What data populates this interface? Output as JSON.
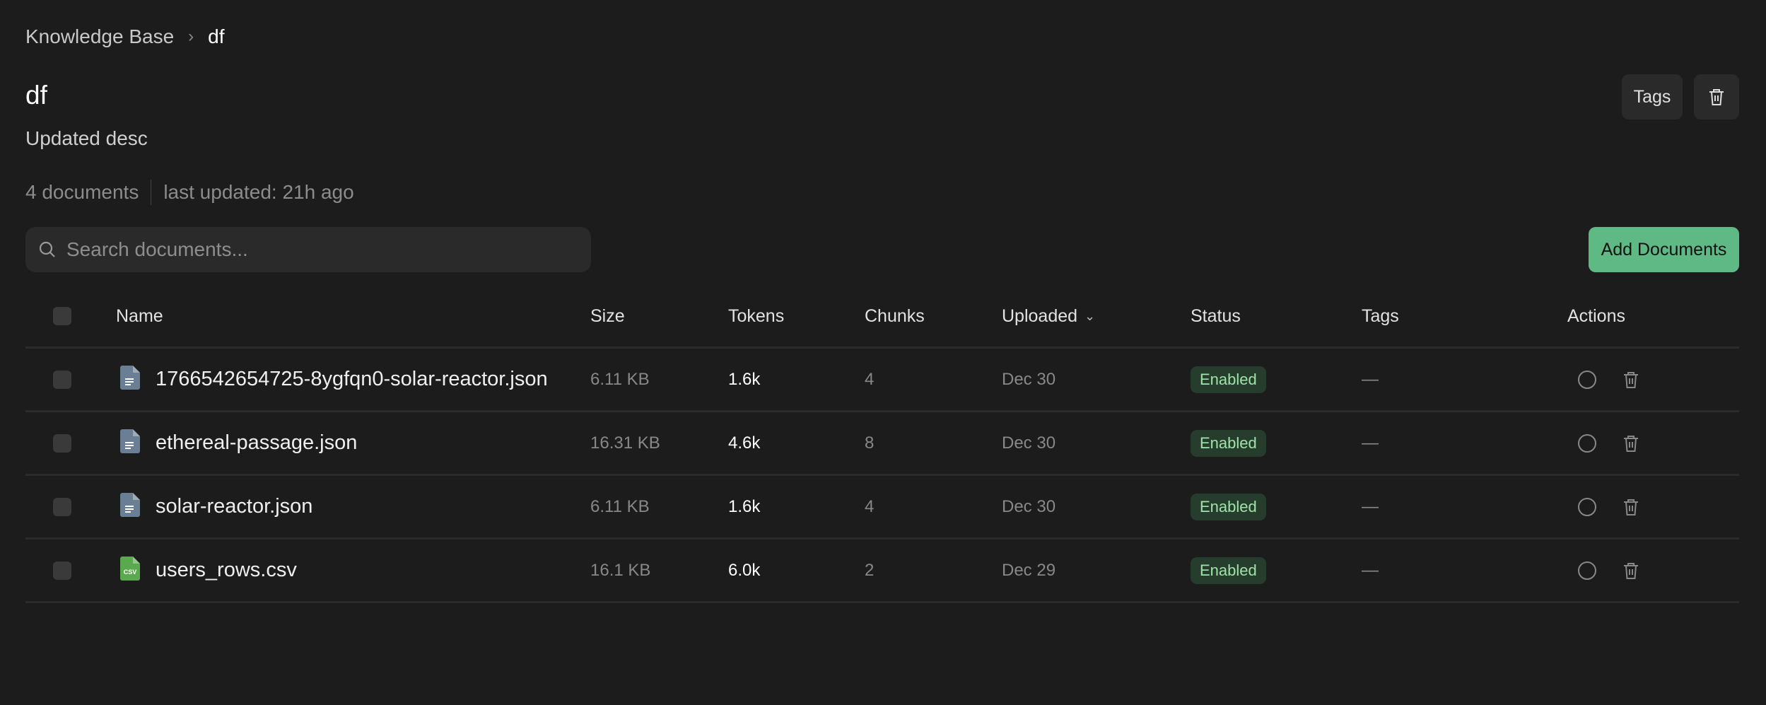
{
  "breadcrumb": {
    "root": "Knowledge Base",
    "current": "df"
  },
  "header": {
    "title": "df",
    "description": "Updated desc",
    "doc_count": "4 documents",
    "last_updated": "last updated: 21h ago",
    "tags_button": "Tags"
  },
  "search": {
    "placeholder": "Search documents...",
    "value": ""
  },
  "add_button": "Add Documents",
  "colors": {
    "accent": "#5fb985",
    "badge_bg": "#263d2d",
    "badge_text": "#9ee3a8",
    "json_icon": "#6a7f93",
    "csv_icon": "#5aa94f"
  },
  "table": {
    "columns": {
      "name": "Name",
      "size": "Size",
      "tokens": "Tokens",
      "chunks": "Chunks",
      "uploaded": "Uploaded",
      "status": "Status",
      "tags": "Tags",
      "actions": "Actions"
    },
    "rows": [
      {
        "name": "1766542654725-8ygfqn0-solar-reactor.json",
        "icon": "json-file-icon",
        "size": "6.11 KB",
        "tokens": "1.6k",
        "chunks": "4",
        "uploaded": "Dec 30",
        "status": "Enabled",
        "tags": "—"
      },
      {
        "name": "ethereal-passage.json",
        "icon": "json-file-icon",
        "size": "16.31 KB",
        "tokens": "4.6k",
        "chunks": "8",
        "uploaded": "Dec 30",
        "status": "Enabled",
        "tags": "—"
      },
      {
        "name": "solar-reactor.json",
        "icon": "json-file-icon",
        "size": "6.11 KB",
        "tokens": "1.6k",
        "chunks": "4",
        "uploaded": "Dec 30",
        "status": "Enabled",
        "tags": "—"
      },
      {
        "name": "users_rows.csv",
        "icon": "csv-file-icon",
        "size": "16.1 KB",
        "tokens": "6.0k",
        "chunks": "2",
        "uploaded": "Dec 29",
        "status": "Enabled",
        "tags": "—",
        "icon_label": "CSV"
      }
    ]
  }
}
